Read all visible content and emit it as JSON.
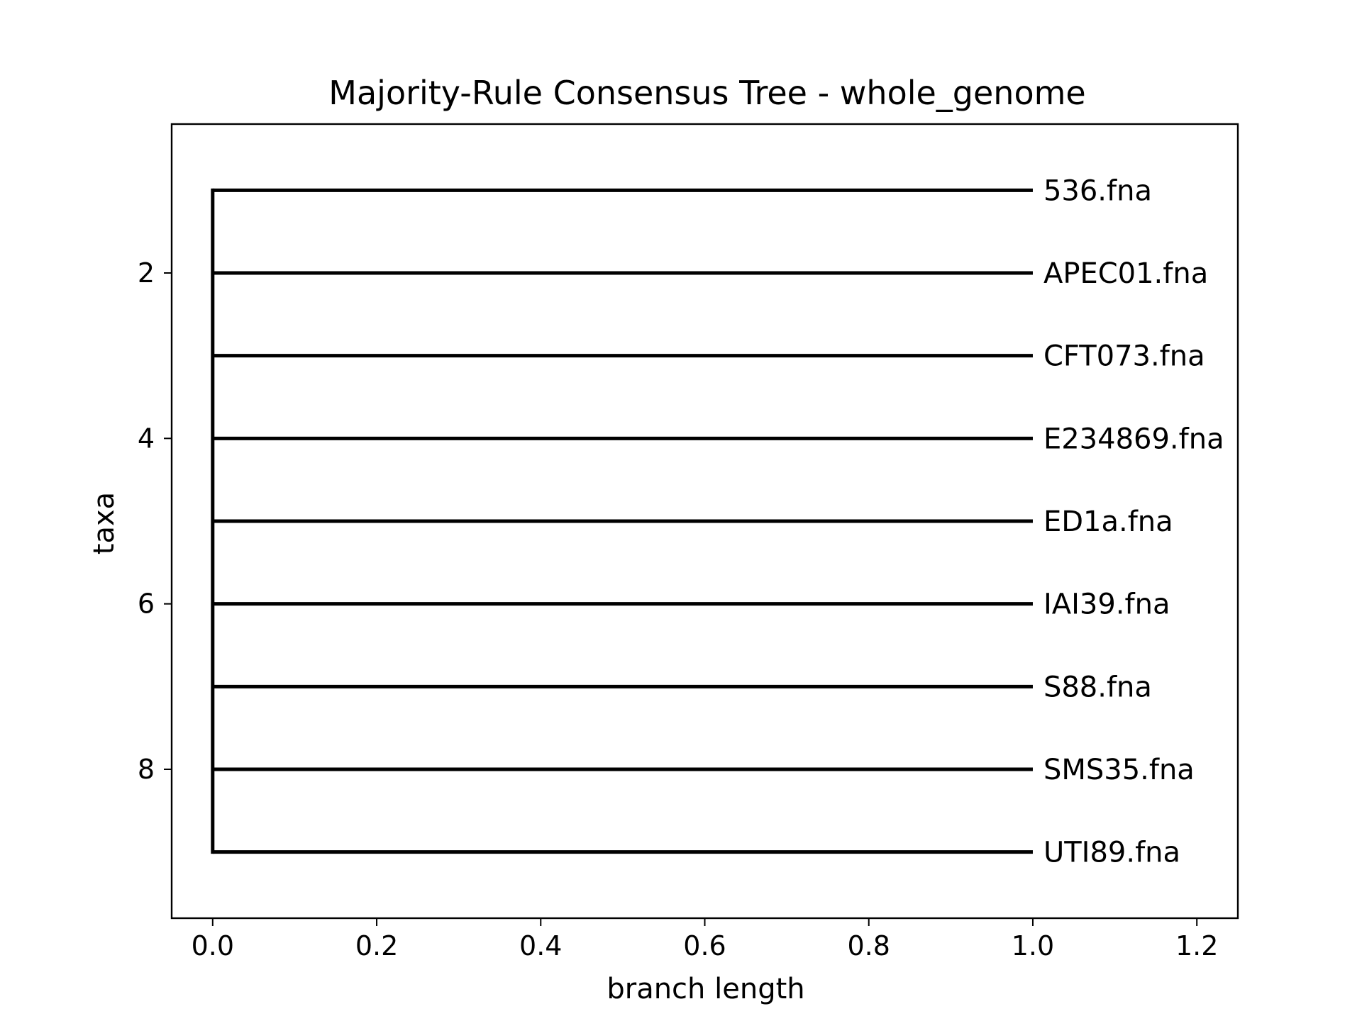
{
  "chart_data": {
    "type": "tree",
    "title": "Majority-Rule Consensus Tree - whole_genome",
    "xlabel": "branch length",
    "ylabel": "taxa",
    "xlim": [
      -0.05,
      1.25
    ],
    "ylim": [
      9.8,
      0.2
    ],
    "x_ticks": [
      0.0,
      0.2,
      0.4,
      0.6,
      0.8,
      1.0,
      1.2
    ],
    "x_tick_labels": [
      "0.0",
      "0.2",
      "0.4",
      "0.6",
      "0.8",
      "1.0",
      "1.2"
    ],
    "y_ticks": [
      2,
      4,
      6,
      8
    ],
    "y_tick_labels": [
      "2",
      "4",
      "6",
      "8"
    ],
    "grid": false,
    "line_color": "#000000",
    "root": {
      "x": 0.0,
      "y_start": 1,
      "y_end": 9
    },
    "leaves": [
      {
        "name": "536.fna",
        "y": 1,
        "x_start": 0.0,
        "x_end": 1.0
      },
      {
        "name": "APEC01.fna",
        "y": 2,
        "x_start": 0.0,
        "x_end": 1.0
      },
      {
        "name": "CFT073.fna",
        "y": 3,
        "x_start": 0.0,
        "x_end": 1.0
      },
      {
        "name": "E234869.fna",
        "y": 4,
        "x_start": 0.0,
        "x_end": 1.0
      },
      {
        "name": "ED1a.fna",
        "y": 5,
        "x_start": 0.0,
        "x_end": 1.0
      },
      {
        "name": "IAI39.fna",
        "y": 6,
        "x_start": 0.0,
        "x_end": 1.0
      },
      {
        "name": "S88.fna",
        "y": 7,
        "x_start": 0.0,
        "x_end": 1.0
      },
      {
        "name": "SMS35.fna",
        "y": 8,
        "x_start": 0.0,
        "x_end": 1.0
      },
      {
        "name": "UTI89.fna",
        "y": 9,
        "x_start": 0.0,
        "x_end": 1.0
      }
    ]
  }
}
